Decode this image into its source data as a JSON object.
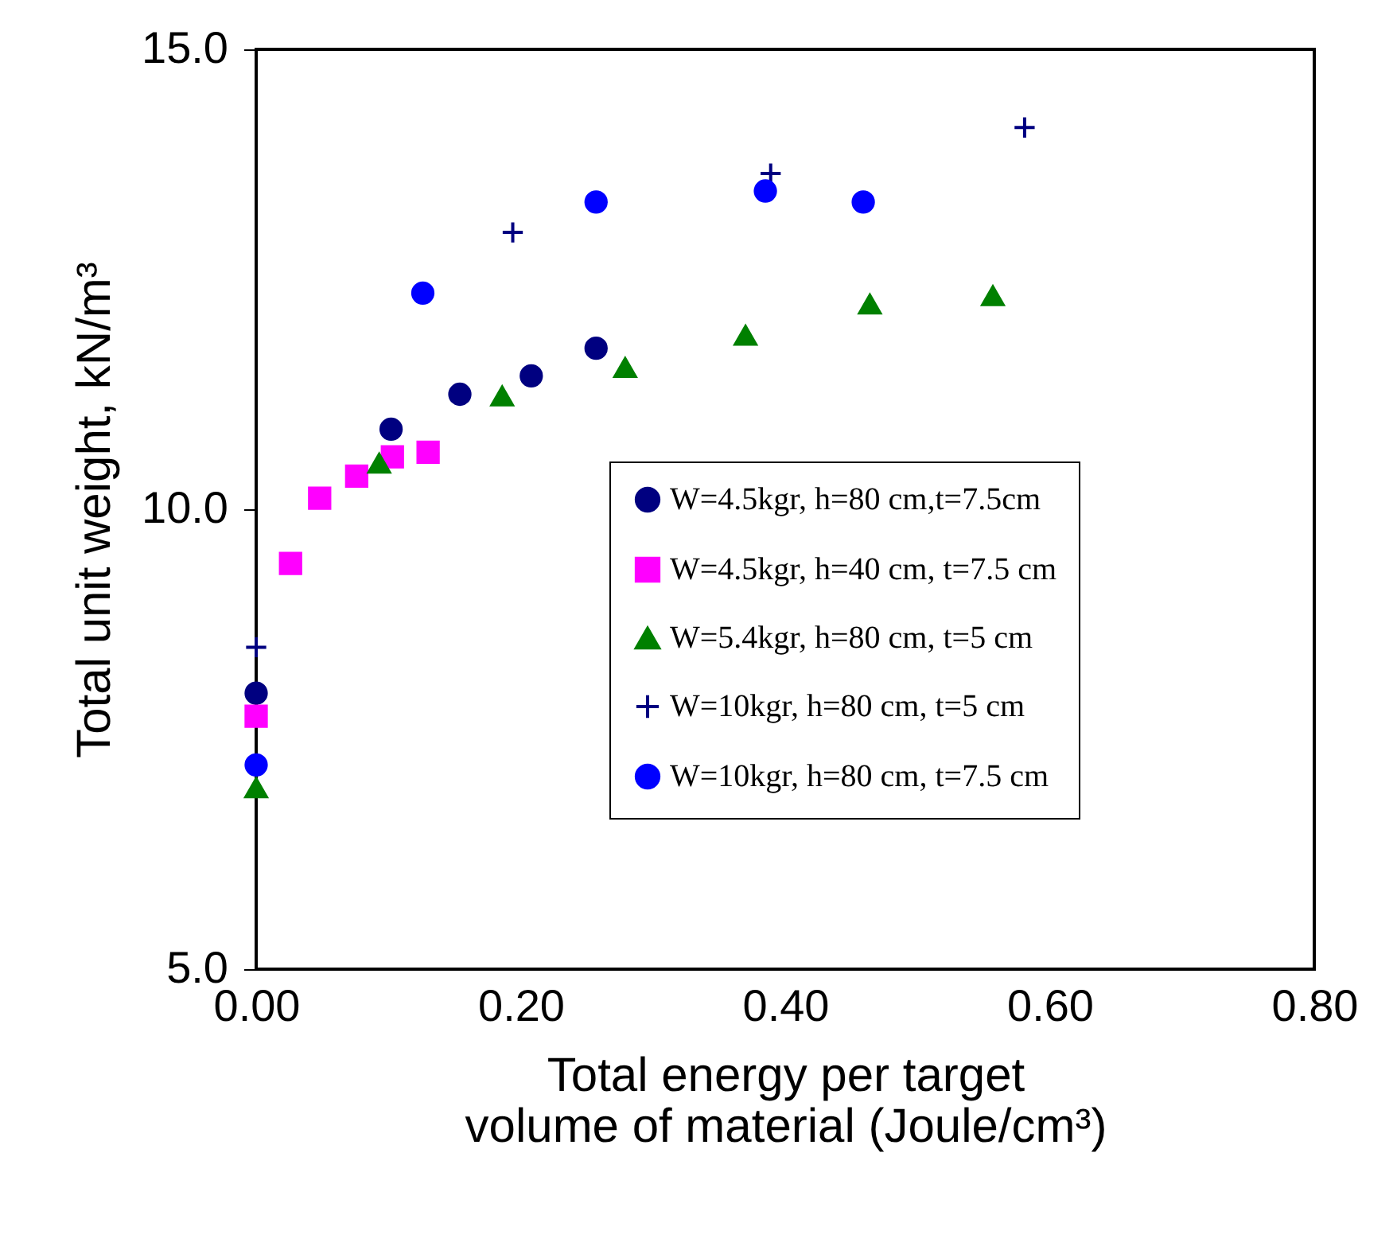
{
  "chart_data": {
    "type": "scatter",
    "xlabel": "Total energy per target volume of material (Joule/cm³)",
    "ylabel": "Total unit weight, kN/m³",
    "xlim": [
      0,
      0.8
    ],
    "ylim": [
      5,
      15
    ],
    "xticks": [
      {
        "value": 0,
        "label": "0.00"
      },
      {
        "value": 0.2,
        "label": "0.20"
      },
      {
        "value": 0.4,
        "label": "0.40"
      },
      {
        "value": 0.6,
        "label": "0.60"
      },
      {
        "value": 0.8,
        "label": "0.80"
      }
    ],
    "yticks": [
      {
        "value": 5,
        "label": "5.0"
      },
      {
        "value": 10,
        "label": "10.0"
      },
      {
        "value": 15,
        "label": "15.0"
      }
    ],
    "grid": false,
    "legend": "bottom right",
    "series": [
      {
        "name": "W=4.5kgr, h=80 cm,t=7.5cm",
        "color": "#000080",
        "marker": "circle",
        "x": [
          0,
          0.102,
          0.154,
          0.208,
          0.257
        ],
        "values": [
          8.0,
          10.87,
          11.25,
          11.45,
          11.75
        ]
      },
      {
        "name": "W=4.5kgr, h=40 cm, t=7.5 cm",
        "color": "#ff00ff",
        "marker": "square",
        "x": [
          0,
          0.026,
          0.048,
          0.076,
          0.103,
          0.13
        ],
        "values": [
          7.75,
          9.41,
          10.12,
          10.36,
          10.57,
          10.62
        ]
      },
      {
        "name": "W=5.4kgr, h=80 cm, t=5 cm",
        "color": "#008000",
        "marker": "triangle",
        "x": [
          0,
          0.093,
          0.186,
          0.279,
          0.37,
          0.464,
          0.557
        ],
        "values": [
          6.97,
          10.5,
          11.23,
          11.54,
          11.89,
          12.23,
          12.32
        ]
      },
      {
        "name": "W=10kgr, h=80 cm, t=5 cm",
        "color": "#000080",
        "marker": "cross",
        "x": [
          0,
          0.194,
          0.389,
          0.581
        ],
        "values": [
          8.5,
          13.01,
          13.65,
          14.15
        ]
      },
      {
        "name": "W=10kgr, h=80 cm, t=7.5 cm",
        "color": "#0000ff",
        "marker": "circle",
        "x": [
          0,
          0.126,
          0.257,
          0.385,
          0.459
        ],
        "values": [
          7.22,
          12.35,
          13.34,
          13.46,
          13.34
        ]
      }
    ]
  }
}
